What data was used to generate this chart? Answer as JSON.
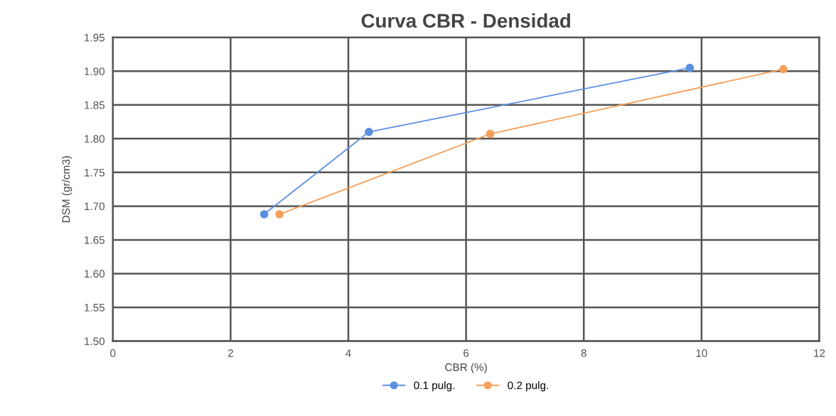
{
  "chart_data": {
    "type": "line",
    "title": "Curva CBR - Densidad",
    "xlabel": "CBR (%)",
    "ylabel": "DSM (gr/cm3)",
    "xlim": [
      0,
      12
    ],
    "xticks": [
      0,
      2,
      4,
      6,
      8,
      10,
      12
    ],
    "ylim": [
      1.5,
      1.95
    ],
    "yticks": [
      {
        "value": 1.5,
        "label": "1.50"
      },
      {
        "value": 1.55,
        "label": "1.55"
      },
      {
        "value": 1.6,
        "label": "1.60"
      },
      {
        "value": 1.65,
        "label": "1.65"
      },
      {
        "value": 1.7,
        "label": "1.70"
      },
      {
        "value": 1.75,
        "label": "1.75"
      },
      {
        "value": 1.8,
        "label": "1.80"
      },
      {
        "value": 1.85,
        "label": "1.85"
      },
      {
        "value": 1.9,
        "label": "1.90"
      },
      {
        "value": 1.95,
        "label": "1.95"
      }
    ],
    "grid": true,
    "legend": "bottom",
    "marker": "circle",
    "line_style": "solid",
    "series": [
      {
        "name": "0.1 pulg.",
        "color": "#5b8fe0",
        "x": [
          2.57,
          4.35,
          9.8
        ],
        "values": [
          1.688,
          1.81,
          1.905
        ]
      },
      {
        "name": "0.2 pulg.",
        "color": "#f5a05a",
        "x": [
          2.83,
          6.41,
          11.39
        ],
        "values": [
          1.688,
          1.807,
          1.903
        ]
      }
    ]
  }
}
